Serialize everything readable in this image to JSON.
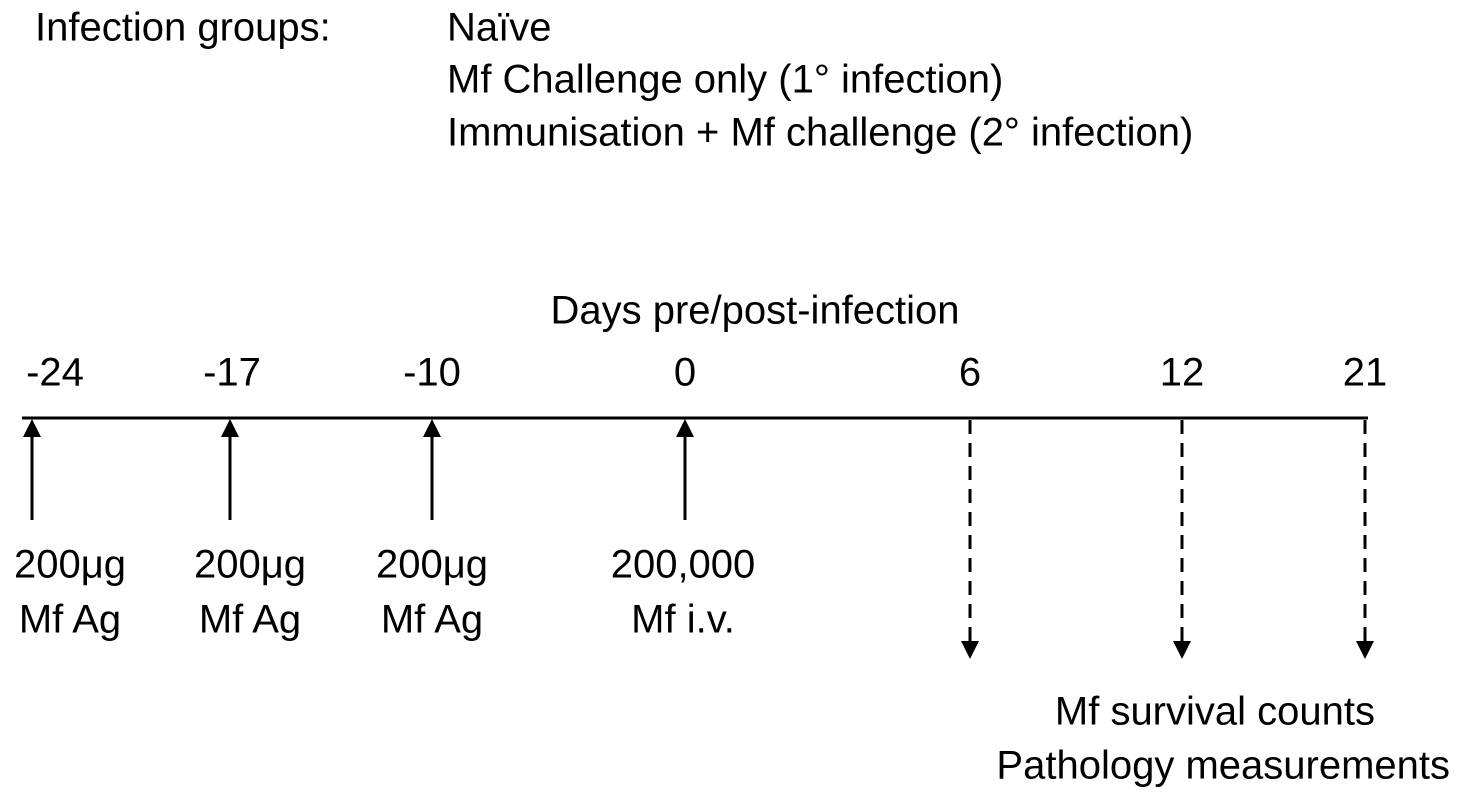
{
  "groups_label": "Infection groups:",
  "groups": [
    "Naïve",
    "Mf Challenge only (1° infection)",
    "Immunisation + Mf challenge (2° infection)"
  ],
  "timeline": {
    "title": "Days pre/post-infection",
    "days": [
      "-24",
      "-17",
      "-10",
      "0",
      "6",
      "12",
      "21"
    ],
    "events": [
      {
        "line1": "200μg",
        "line2": "Mf Ag"
      },
      {
        "line1": "200μg",
        "line2": "Mf Ag"
      },
      {
        "line1": "200μg",
        "line2": "Mf Ag"
      },
      {
        "line1": "200,000",
        "line2": "Mf i.v."
      }
    ],
    "measurements": [
      "Mf survival counts",
      "Pathology measurements"
    ]
  }
}
